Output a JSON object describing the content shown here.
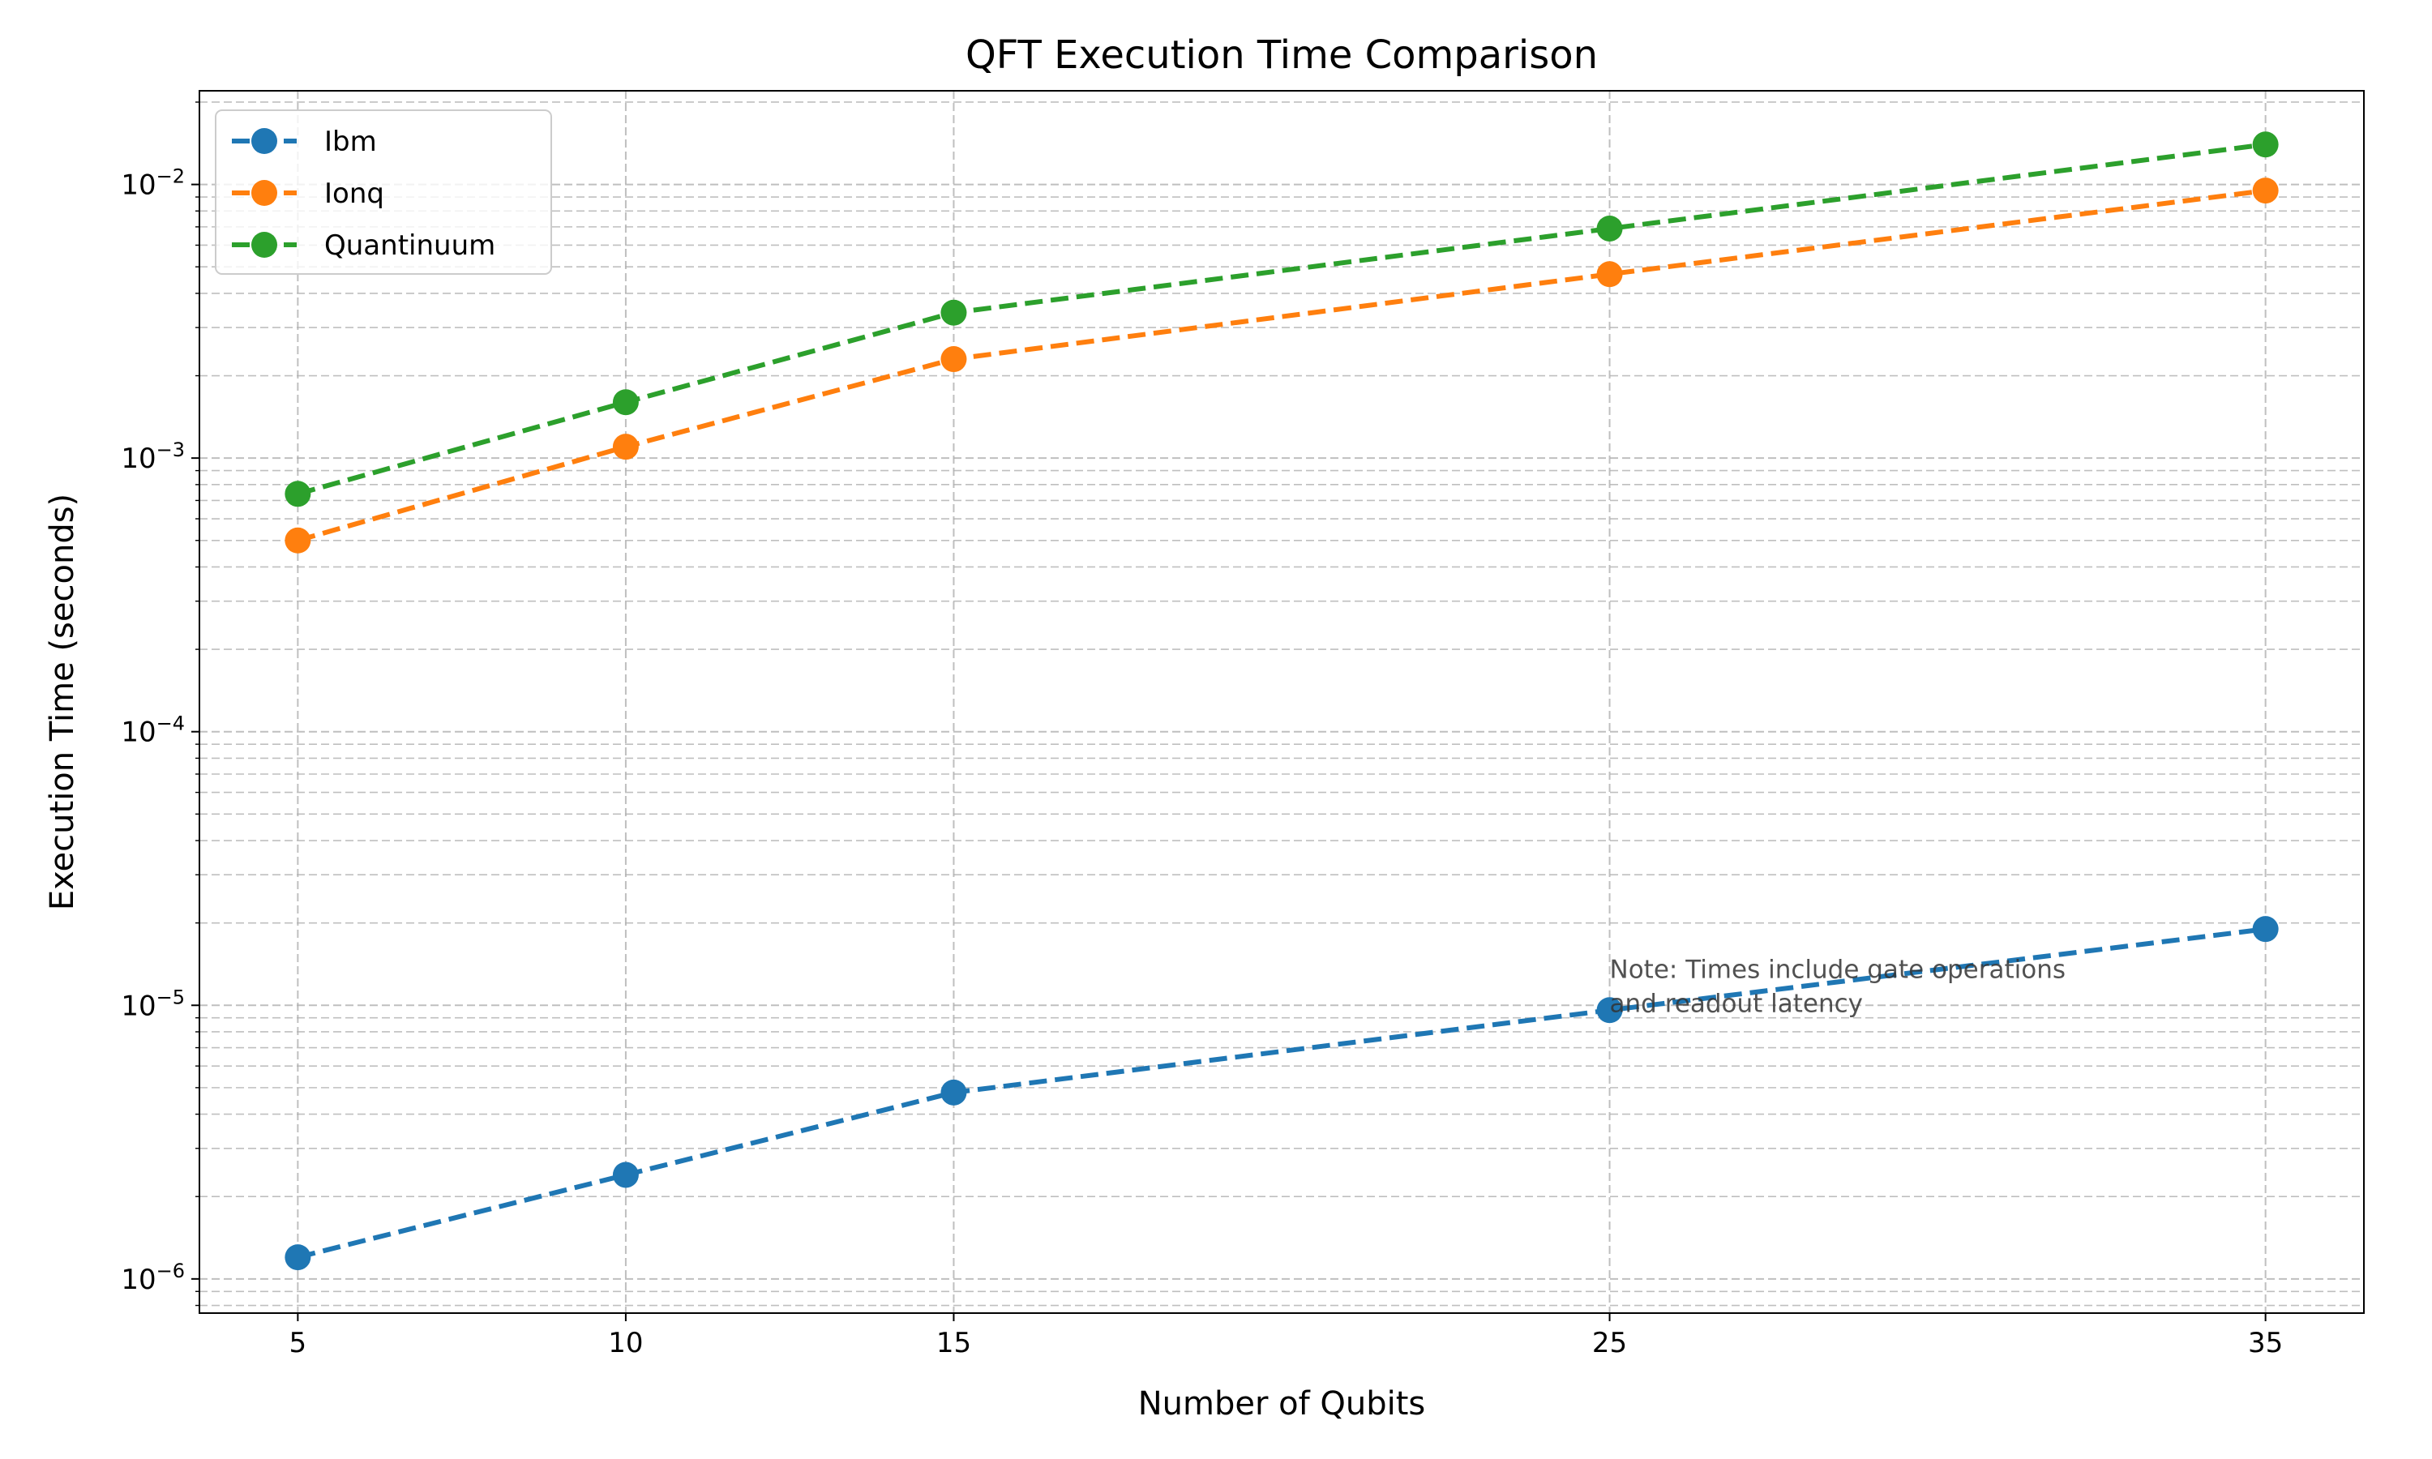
{
  "chart_data": {
    "type": "line",
    "title": "QFT Execution Time Comparison",
    "xlabel": "Number of Qubits",
    "ylabel": "Execution Time (seconds)",
    "x": [
      5,
      10,
      15,
      25,
      35
    ],
    "x_tick_labels": [
      "5",
      "10",
      "15",
      "25",
      "35"
    ],
    "xlim": [
      3.5,
      36.5
    ],
    "y_scale": "log",
    "ylim": [
      7.5e-07,
      0.022
    ],
    "y_ticks": [
      {
        "value": 1e-06,
        "base": "10",
        "exp": "−6"
      },
      {
        "value": 1e-05,
        "base": "10",
        "exp": "−5"
      },
      {
        "value": 0.0001,
        "base": "10",
        "exp": "−4"
      },
      {
        "value": 0.001,
        "base": "10",
        "exp": "−3"
      },
      {
        "value": 0.01,
        "base": "10",
        "exp": "−2"
      }
    ],
    "grid": true,
    "legend_position": "top-left",
    "series": [
      {
        "name": "Ibm",
        "color": "#1f77b4",
        "values": [
          1.2e-06,
          2.4e-06,
          4.8e-06,
          9.6e-06,
          1.9e-05
        ]
      },
      {
        "name": "Ionq",
        "color": "#ff7f0e",
        "values": [
          0.0005,
          0.0011,
          0.0023,
          0.0047,
          0.0095
        ]
      },
      {
        "name": "Quantinuum",
        "color": "#2ca02c",
        "values": [
          0.00074,
          0.0016,
          0.0034,
          0.0069,
          0.014
        ]
      }
    ],
    "annotation": {
      "lines": [
        "Note: Times include gate operations",
        "and readout latency"
      ],
      "x": 25,
      "y": 9.6e-06
    }
  }
}
